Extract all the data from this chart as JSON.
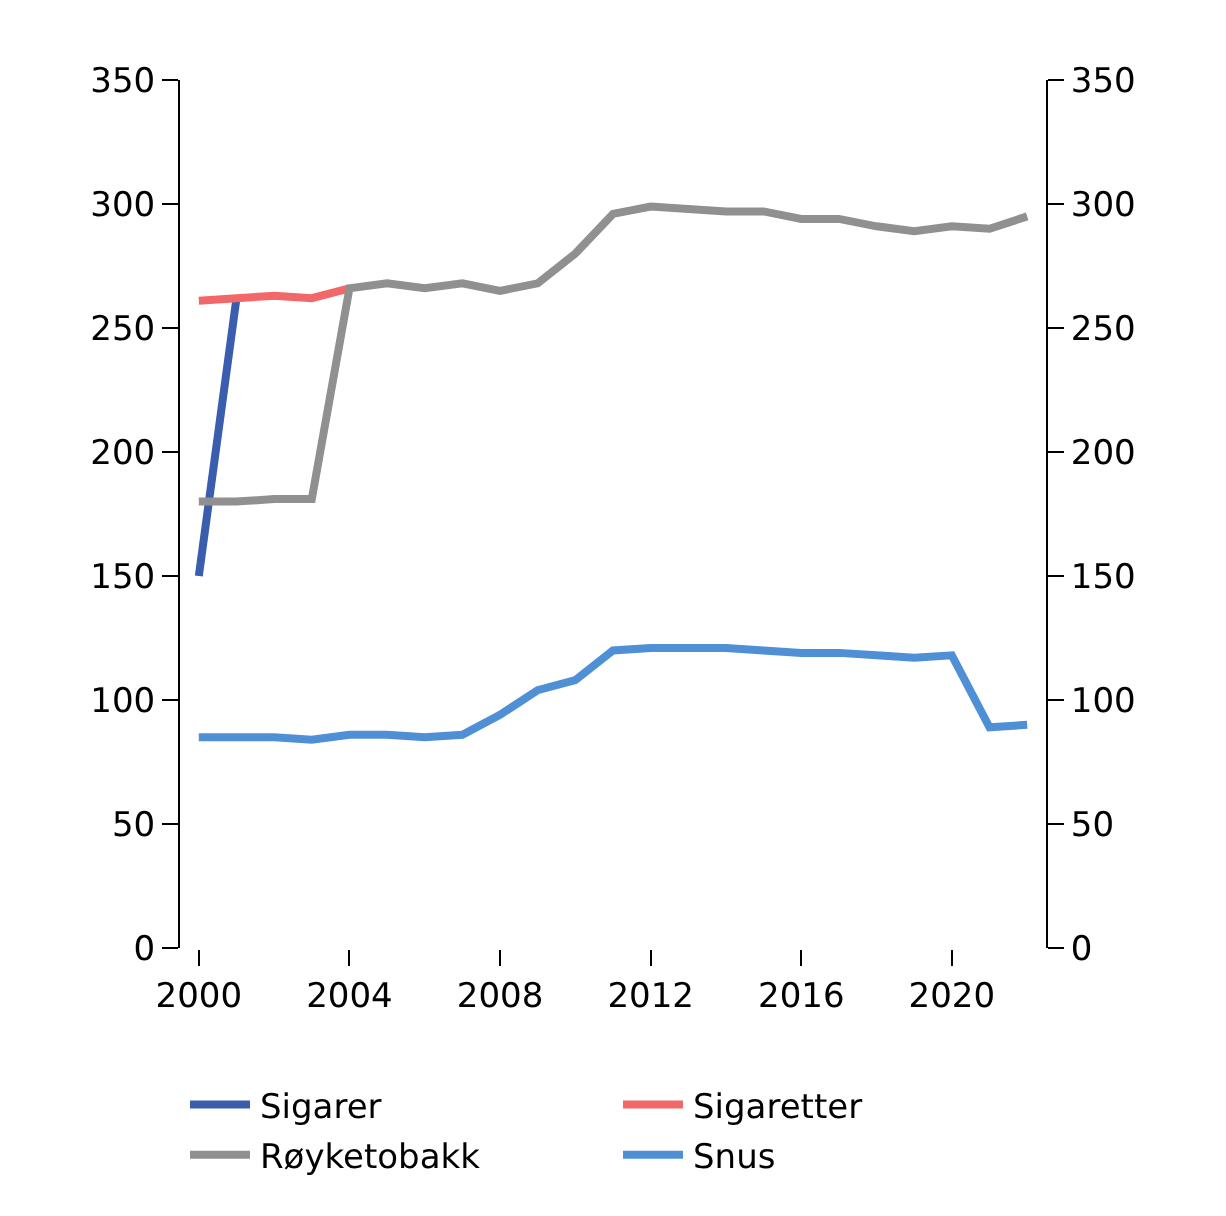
{
  "chart_data": {
    "type": "line",
    "x": [
      2000,
      2001,
      2002,
      2003,
      2004,
      2005,
      2006,
      2007,
      2008,
      2009,
      2010,
      2011,
      2012,
      2013,
      2014,
      2015,
      2016,
      2017,
      2018,
      2019,
      2020,
      2021,
      2022
    ],
    "series": [
      {
        "name": "Sigarer",
        "color": "#3a5dae",
        "values": [
          150,
          262,
          null,
          null,
          null,
          null,
          null,
          null,
          null,
          null,
          null,
          null,
          null,
          null,
          null,
          null,
          null,
          null,
          null,
          null,
          null,
          null,
          null
        ]
      },
      {
        "name": "Sigaretter",
        "color": "#f26768",
        "values": [
          261,
          262,
          263,
          262,
          266,
          null,
          null,
          null,
          null,
          null,
          null,
          null,
          null,
          null,
          null,
          null,
          null,
          null,
          null,
          null,
          null,
          null,
          null
        ]
      },
      {
        "name": "Røyketobakk",
        "color": "#909090",
        "values": [
          180,
          180,
          181,
          181,
          266,
          268,
          266,
          268,
          265,
          268,
          280,
          296,
          299,
          298,
          297,
          297,
          294,
          294,
          291,
          289,
          291,
          290,
          295
        ]
      },
      {
        "name": "Snus",
        "color": "#4f8fd6",
        "values": [
          85,
          85,
          85,
          84,
          86,
          86,
          85,
          86,
          94,
          104,
          108,
          120,
          121,
          121,
          121,
          120,
          119,
          119,
          118,
          117,
          118,
          89,
          90
        ]
      }
    ],
    "xlim": [
      1999.5,
      2022.5
    ],
    "xticks": [
      2000,
      2004,
      2008,
      2012,
      2016,
      2020
    ],
    "ylim": [
      0,
      350
    ],
    "yticks": [
      0,
      50,
      100,
      150,
      200,
      250,
      300,
      350
    ],
    "y2lim": [
      0,
      350
    ],
    "y2ticks": [
      0,
      50,
      100,
      150,
      200,
      250,
      300,
      350
    ],
    "legend": "bottom",
    "marker": "none",
    "line_style": "solid"
  }
}
